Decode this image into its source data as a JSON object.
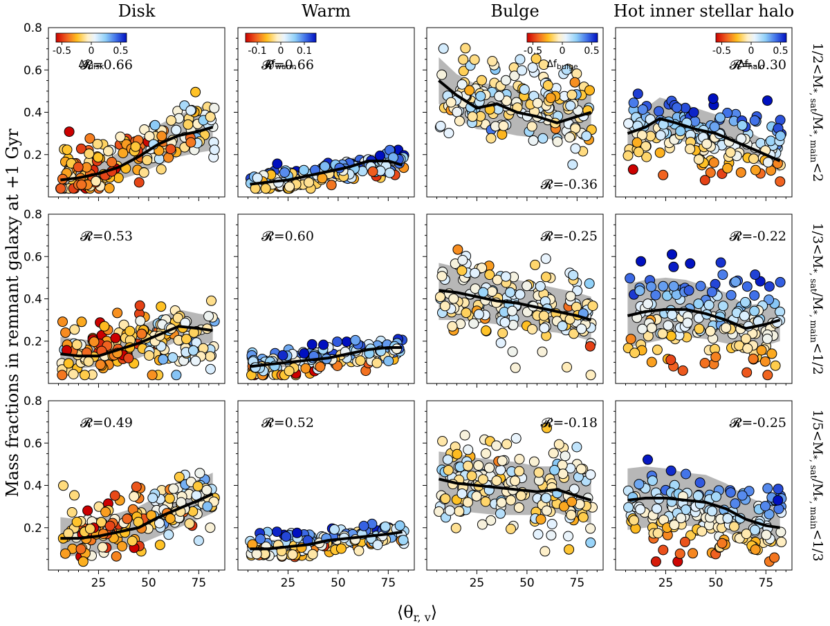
{
  "figure": {
    "ylabel": "Mass fractions in remnant galaxy at +1 Gyr",
    "xlabel": "⟨θ",
    "xlabel_sub": "r, v",
    "xlabel_close": "⟩"
  },
  "chart_data": {
    "type": "scatter",
    "columns": [
      {
        "title": "Disk",
        "cbar_label": "Δf",
        "cbar_sub": "disk",
        "cbar_ticks": [
          "-0.5",
          "0",
          "0.5"
        ],
        "cbar_range": [
          -0.6,
          0.6
        ],
        "cbar_pos": "top-left"
      },
      {
        "title": "Warm",
        "cbar_label": "Δf",
        "cbar_sub": "warm",
        "cbar_ticks": [
          "-0.1",
          "0",
          "0.1"
        ],
        "cbar_range": [
          -0.15,
          0.15
        ],
        "cbar_pos": "top-left"
      },
      {
        "title": "Bulge",
        "cbar_label": "Δf",
        "cbar_sub": "bulge",
        "cbar_ticks": [
          "-0.5",
          "0",
          "0.5"
        ],
        "cbar_range": [
          -0.6,
          0.6
        ],
        "cbar_pos": "top-right"
      },
      {
        "title": "Hot inner stellar halo",
        "cbar_label": "Δf",
        "cbar_sub": "halo",
        "cbar_ticks": [
          "-0.5",
          "0",
          "0.5"
        ],
        "cbar_range": [
          -0.6,
          0.6
        ],
        "cbar_pos": "top-right"
      }
    ],
    "rows": [
      {
        "label_pre": "1/2<M",
        "label_mid": "*, sat",
        "label_mid2": "/M",
        "label_sub2": "*, main",
        "label_post": "<2"
      },
      {
        "label_pre": "1/3<M",
        "label_mid": "*, sat",
        "label_mid2": "/M",
        "label_sub2": "*, main",
        "label_post": "<1/2"
      },
      {
        "label_pre": "1/5<M",
        "label_mid": "*, sat",
        "label_mid2": "/M",
        "label_sub2": "*, main",
        "label_post": "<1/3"
      }
    ],
    "xlim": [
      0,
      88
    ],
    "ylim": [
      0.0,
      0.8
    ],
    "xticks": [
      25,
      50,
      75
    ],
    "yticks": [
      0.2,
      0.4,
      0.6,
      0.8
    ],
    "panels": [
      {
        "row": 0,
        "col": 0,
        "R": "𝓡=0.66",
        "R_pos": "top",
        "trend_x": [
          6,
          15,
          25,
          35,
          45,
          55,
          65,
          75,
          82
        ],
        "trend_y": [
          0.08,
          0.09,
          0.11,
          0.14,
          0.19,
          0.25,
          0.29,
          0.31,
          0.33
        ],
        "band_lo": [
          0.04,
          0.05,
          0.06,
          0.08,
          0.11,
          0.15,
          0.19,
          0.21,
          0.22
        ],
        "band_hi": [
          0.12,
          0.13,
          0.16,
          0.21,
          0.27,
          0.34,
          0.39,
          0.42,
          0.45
        ],
        "scatter": {
          "center": [
            0.08,
            0.33
          ],
          "spread": 0.07,
          "bias": 0.0,
          "seed": 11
        }
      },
      {
        "row": 0,
        "col": 1,
        "R": "𝓡=0.66",
        "R_pos": "top",
        "trend_x": [
          6,
          15,
          25,
          35,
          45,
          55,
          65,
          75,
          82
        ],
        "trend_y": [
          0.06,
          0.07,
          0.08,
          0.1,
          0.12,
          0.14,
          0.17,
          0.17,
          0.15
        ],
        "band_lo": [
          0.04,
          0.05,
          0.06,
          0.07,
          0.09,
          0.11,
          0.13,
          0.14,
          0.12
        ],
        "band_hi": [
          0.08,
          0.09,
          0.11,
          0.13,
          0.15,
          0.18,
          0.2,
          0.2,
          0.19
        ],
        "scatter": {
          "center": [
            0.06,
            0.16
          ],
          "spread": 0.03,
          "bias": 0.04,
          "seed": 23
        }
      },
      {
        "row": 0,
        "col": 2,
        "R": "𝓡=-0.36",
        "R_pos": "bottom",
        "trend_x": [
          6,
          15,
          25,
          35,
          45,
          55,
          65,
          75,
          82
        ],
        "trend_y": [
          0.55,
          0.48,
          0.42,
          0.44,
          0.4,
          0.38,
          0.35,
          0.38,
          0.4
        ],
        "band_lo": [
          0.44,
          0.37,
          0.32,
          0.31,
          0.29,
          0.28,
          0.27,
          0.29,
          0.31
        ],
        "band_hi": [
          0.66,
          0.58,
          0.53,
          0.54,
          0.52,
          0.49,
          0.48,
          0.5,
          0.52
        ],
        "scatter": {
          "center": [
            0.5,
            0.38
          ],
          "spread": 0.1,
          "bias": -0.05,
          "seed": 37
        }
      },
      {
        "row": 0,
        "col": 3,
        "R": "𝓡=-0.30",
        "R_pos": "top",
        "trend_x": [
          6,
          15,
          22,
          30,
          40,
          50,
          60,
          70,
          82
        ],
        "trend_y": [
          0.3,
          0.33,
          0.37,
          0.35,
          0.32,
          0.3,
          0.26,
          0.22,
          0.17
        ],
        "band_lo": [
          0.23,
          0.25,
          0.28,
          0.27,
          0.25,
          0.23,
          0.2,
          0.16,
          0.12
        ],
        "band_hi": [
          0.37,
          0.42,
          0.47,
          0.45,
          0.42,
          0.39,
          0.35,
          0.29,
          0.23
        ],
        "scatter": {
          "center": [
            0.32,
            0.22
          ],
          "spread": 0.08,
          "bias": 0.25,
          "seed": 41
        }
      },
      {
        "row": 1,
        "col": 0,
        "R": "𝓡=0.53",
        "R_pos": "top",
        "trend_x": [
          6,
          15,
          25,
          35,
          45,
          55,
          65,
          75,
          82
        ],
        "trend_y": [
          0.14,
          0.13,
          0.13,
          0.16,
          0.19,
          0.23,
          0.27,
          0.26,
          0.25
        ],
        "band_lo": [
          0.06,
          0.07,
          0.08,
          0.1,
          0.12,
          0.16,
          0.2,
          0.19,
          0.19
        ],
        "band_hi": [
          0.22,
          0.21,
          0.2,
          0.23,
          0.27,
          0.31,
          0.35,
          0.33,
          0.32
        ],
        "scatter": {
          "center": [
            0.14,
            0.25
          ],
          "spread": 0.07,
          "bias": -0.1,
          "seed": 53
        }
      },
      {
        "row": 1,
        "col": 1,
        "R": "𝓡=0.60",
        "R_pos": "top",
        "trend_x": [
          6,
          15,
          25,
          35,
          45,
          55,
          65,
          75,
          82
        ],
        "trend_y": [
          0.08,
          0.09,
          0.1,
          0.11,
          0.12,
          0.14,
          0.16,
          0.17,
          0.17
        ],
        "band_lo": [
          0.06,
          0.07,
          0.08,
          0.09,
          0.1,
          0.11,
          0.13,
          0.14,
          0.14
        ],
        "band_hi": [
          0.11,
          0.12,
          0.13,
          0.14,
          0.15,
          0.17,
          0.19,
          0.2,
          0.2
        ],
        "scatter": {
          "center": [
            0.08,
            0.17
          ],
          "spread": 0.03,
          "bias": 0.05,
          "seed": 67
        }
      },
      {
        "row": 1,
        "col": 2,
        "R": "𝓡=-0.25",
        "R_pos": "top",
        "trend_x": [
          6,
          15,
          25,
          35,
          45,
          55,
          65,
          75,
          82
        ],
        "trend_y": [
          0.44,
          0.43,
          0.41,
          0.39,
          0.38,
          0.36,
          0.34,
          0.32,
          0.3
        ],
        "band_lo": [
          0.3,
          0.3,
          0.29,
          0.28,
          0.27,
          0.25,
          0.24,
          0.22,
          0.2
        ],
        "band_hi": [
          0.57,
          0.55,
          0.53,
          0.51,
          0.49,
          0.47,
          0.45,
          0.43,
          0.41
        ],
        "scatter": {
          "center": [
            0.44,
            0.31
          ],
          "spread": 0.11,
          "bias": -0.03,
          "seed": 71
        }
      },
      {
        "row": 1,
        "col": 3,
        "R": "𝓡=-0.22",
        "R_pos": "top",
        "trend_x": [
          6,
          15,
          25,
          35,
          45,
          55,
          65,
          75,
          82
        ],
        "trend_y": [
          0.32,
          0.34,
          0.35,
          0.35,
          0.33,
          0.3,
          0.26,
          0.28,
          0.3
        ],
        "band_lo": [
          0.17,
          0.19,
          0.21,
          0.22,
          0.21,
          0.19,
          0.17,
          0.18,
          0.2
        ],
        "band_hi": [
          0.47,
          0.49,
          0.5,
          0.49,
          0.46,
          0.43,
          0.37,
          0.38,
          0.39
        ],
        "scatter": {
          "center": [
            0.33,
            0.27
          ],
          "spread": 0.12,
          "bias": 0.22,
          "seed": 83
        }
      },
      {
        "row": 2,
        "col": 0,
        "R": "𝓡=0.49",
        "R_pos": "top",
        "trend_x": [
          6,
          15,
          25,
          35,
          45,
          55,
          65,
          75,
          82
        ],
        "trend_y": [
          0.15,
          0.15,
          0.16,
          0.18,
          0.2,
          0.25,
          0.29,
          0.33,
          0.36
        ],
        "band_lo": [
          0.06,
          0.07,
          0.08,
          0.1,
          0.12,
          0.16,
          0.2,
          0.24,
          0.27
        ],
        "band_hi": [
          0.25,
          0.24,
          0.25,
          0.27,
          0.3,
          0.35,
          0.39,
          0.43,
          0.46
        ],
        "scatter": {
          "center": [
            0.15,
            0.35
          ],
          "spread": 0.08,
          "bias": -0.12,
          "seed": 97
        }
      },
      {
        "row": 2,
        "col": 1,
        "R": "𝓡=0.52",
        "R_pos": "top",
        "trend_x": [
          6,
          15,
          25,
          35,
          45,
          55,
          65,
          75,
          82
        ],
        "trend_y": [
          0.1,
          0.1,
          0.11,
          0.12,
          0.14,
          0.15,
          0.16,
          0.17,
          0.18
        ],
        "band_lo": [
          0.07,
          0.07,
          0.08,
          0.09,
          0.1,
          0.11,
          0.12,
          0.13,
          0.14
        ],
        "band_hi": [
          0.13,
          0.14,
          0.15,
          0.16,
          0.17,
          0.19,
          0.2,
          0.21,
          0.22
        ],
        "scatter": {
          "center": [
            0.1,
            0.18
          ],
          "spread": 0.03,
          "bias": 0.05,
          "seed": 101
        }
      },
      {
        "row": 2,
        "col": 2,
        "R": "𝓡=-0.18",
        "R_pos": "top",
        "trend_x": [
          6,
          15,
          25,
          35,
          45,
          55,
          65,
          75,
          82
        ],
        "trend_y": [
          0.43,
          0.41,
          0.4,
          0.39,
          0.38,
          0.37,
          0.38,
          0.35,
          0.33
        ],
        "band_lo": [
          0.3,
          0.28,
          0.27,
          0.26,
          0.26,
          0.26,
          0.27,
          0.24,
          0.22
        ],
        "band_hi": [
          0.56,
          0.55,
          0.53,
          0.52,
          0.51,
          0.49,
          0.49,
          0.47,
          0.45
        ],
        "scatter": {
          "center": [
            0.43,
            0.34
          ],
          "spread": 0.12,
          "bias": -0.03,
          "seed": 113
        }
      },
      {
        "row": 2,
        "col": 3,
        "R": "𝓡=-0.25",
        "R_pos": "top",
        "trend_x": [
          6,
          15,
          25,
          35,
          45,
          55,
          65,
          75,
          82
        ],
        "trend_y": [
          0.33,
          0.34,
          0.34,
          0.33,
          0.32,
          0.29,
          0.24,
          0.21,
          0.2
        ],
        "band_lo": [
          0.19,
          0.2,
          0.21,
          0.21,
          0.2,
          0.18,
          0.14,
          0.12,
          0.11
        ],
        "band_hi": [
          0.48,
          0.49,
          0.48,
          0.46,
          0.45,
          0.41,
          0.35,
          0.31,
          0.29
        ],
        "scatter": {
          "center": [
            0.33,
            0.2
          ],
          "spread": 0.1,
          "bias": 0.2,
          "seed": 127
        }
      }
    ]
  }
}
